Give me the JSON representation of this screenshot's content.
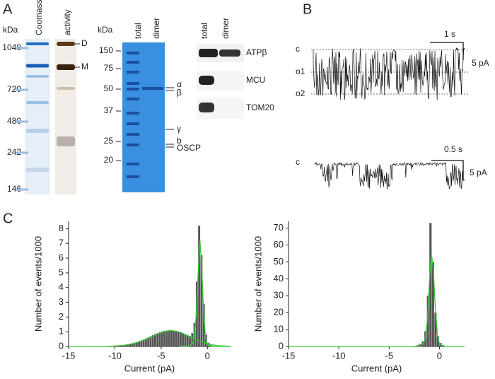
{
  "panel_labels": [
    "A",
    "B",
    "C"
  ],
  "gel_native": {
    "unit": "kDa",
    "lanes": [
      "Coomassie",
      "activity"
    ],
    "markers": [
      "1048",
      "720",
      "480",
      "242",
      "146"
    ],
    "bands": [
      "D",
      "M"
    ]
  },
  "gel_sds": {
    "unit": "kDa",
    "lanes": [
      "total",
      "dimer"
    ],
    "markers": [
      "150",
      "75",
      "50",
      "37",
      "25",
      "20"
    ],
    "subunits": [
      "α",
      "β",
      "γ",
      "b",
      "OSCP"
    ]
  },
  "western": {
    "lanes": [
      "total",
      "dimer"
    ],
    "antibodies": [
      "ATPβ",
      "MCU",
      "TOM20"
    ]
  },
  "traces": [
    {
      "levels": [
        "c",
        "o1",
        "o2"
      ],
      "time_scale": "1 s",
      "current_scale": "5 pA"
    },
    {
      "levels": [
        "c"
      ],
      "time_scale": "0.5 s",
      "current_scale": "5 pA"
    }
  ],
  "chart_data": [
    {
      "type": "histogram",
      "xlabel": "Current (pA)",
      "ylabel": "Number of events/1000",
      "color": "#555555",
      "bins": [
        -10,
        -9.75,
        -9.5,
        -9.25,
        -9,
        -8.75,
        -8.5,
        -8.25,
        -8,
        -7.75,
        -7.5,
        -7.25,
        -7,
        -6.75,
        -6.5,
        -6.25,
        -6,
        -5.75,
        -5.5,
        -5.25,
        -5,
        -4.75,
        -4.5,
        -4.25,
        -4,
        -3.75,
        -3.5,
        -3.25,
        -3,
        -2.75,
        -2.5,
        -2.25,
        -2,
        -1.75,
        -1.5,
        -1.25,
        -1,
        -0.75,
        -0.5,
        -0.25,
        0,
        0.25,
        0.5,
        0.75,
        1
      ],
      "values": [
        0.03,
        0.04,
        0.06,
        0.07,
        0.09,
        0.12,
        0.15,
        0.19,
        0.23,
        0.28,
        0.34,
        0.4,
        0.47,
        0.54,
        0.61,
        0.69,
        0.76,
        0.84,
        0.9,
        0.96,
        1.02,
        1.06,
        1.08,
        1.1,
        1.1,
        1.08,
        1.06,
        1.02,
        0.96,
        0.9,
        0.84,
        0.76,
        0.7,
        0.9,
        1.6,
        4.4,
        8.2,
        6.2,
        2.9,
        0.8,
        0.25,
        0.1,
        0.05,
        0.02
      ],
      "xlim": [
        -15,
        2.5
      ],
      "ylim": [
        0,
        8.5
      ],
      "xticks": [
        -15,
        -10,
        -5,
        0
      ],
      "yticks": [
        0,
        1,
        2,
        3,
        4,
        5,
        6,
        7,
        8
      ],
      "fits": [
        {
          "color": "#33cc33",
          "x": [
            -15,
            -13,
            -11,
            -10,
            -9,
            -8,
            -7,
            -6,
            -5,
            -4,
            -3,
            -2,
            -1,
            0,
            1,
            2.5
          ],
          "values": [
            0,
            0,
            0.01,
            0.03,
            0.08,
            0.2,
            0.4,
            0.67,
            0.95,
            1.1,
            0.98,
            0.7,
            0.4,
            0.18,
            0.06,
            0.01
          ]
        },
        {
          "color": "#33cc33",
          "x": [
            -3,
            -2,
            -1.6,
            -1.4,
            -1.2,
            -1,
            -0.8,
            -0.6,
            -0.4,
            -0.2,
            0,
            0.5,
            1,
            2.5
          ],
          "values": [
            0,
            0.02,
            0.2,
            0.7,
            2.2,
            5,
            7.2,
            5.2,
            2.2,
            0.6,
            0.1,
            0,
            0,
            0
          ]
        }
      ]
    },
    {
      "type": "histogram",
      "xlabel": "Current (pA)",
      "ylabel": "Number of events/1000",
      "color": "#555555",
      "bins": [
        -3,
        -2.75,
        -2.5,
        -2.25,
        -2,
        -1.75,
        -1.5,
        -1.25,
        -1,
        -0.75,
        -0.5,
        -0.25,
        0,
        0.25,
        0.5,
        0.75,
        1
      ],
      "values": [
        0,
        0.1,
        0.3,
        0.8,
        1.5,
        3,
        9,
        30,
        73,
        50,
        20,
        6,
        2,
        0.8,
        0.3,
        0.1
      ],
      "xlim": [
        -15,
        2.5
      ],
      "ylim": [
        0,
        74
      ],
      "xticks": [
        -15,
        -10,
        -5,
        0
      ],
      "yticks": [
        0,
        10,
        20,
        30,
        40,
        50,
        60,
        70
      ],
      "fits": [
        {
          "color": "#33cc33",
          "x": [
            -15,
            -3,
            -2,
            -1.6,
            -1.4,
            -1.2,
            -1,
            -0.8,
            -0.6,
            -0.4,
            -0.2,
            0,
            0.4,
            1,
            2.5
          ],
          "values": [
            0,
            0,
            0.2,
            1.5,
            5,
            16,
            38,
            55,
            45,
            22,
            7,
            1.5,
            0.1,
            0,
            0
          ]
        }
      ]
    }
  ]
}
